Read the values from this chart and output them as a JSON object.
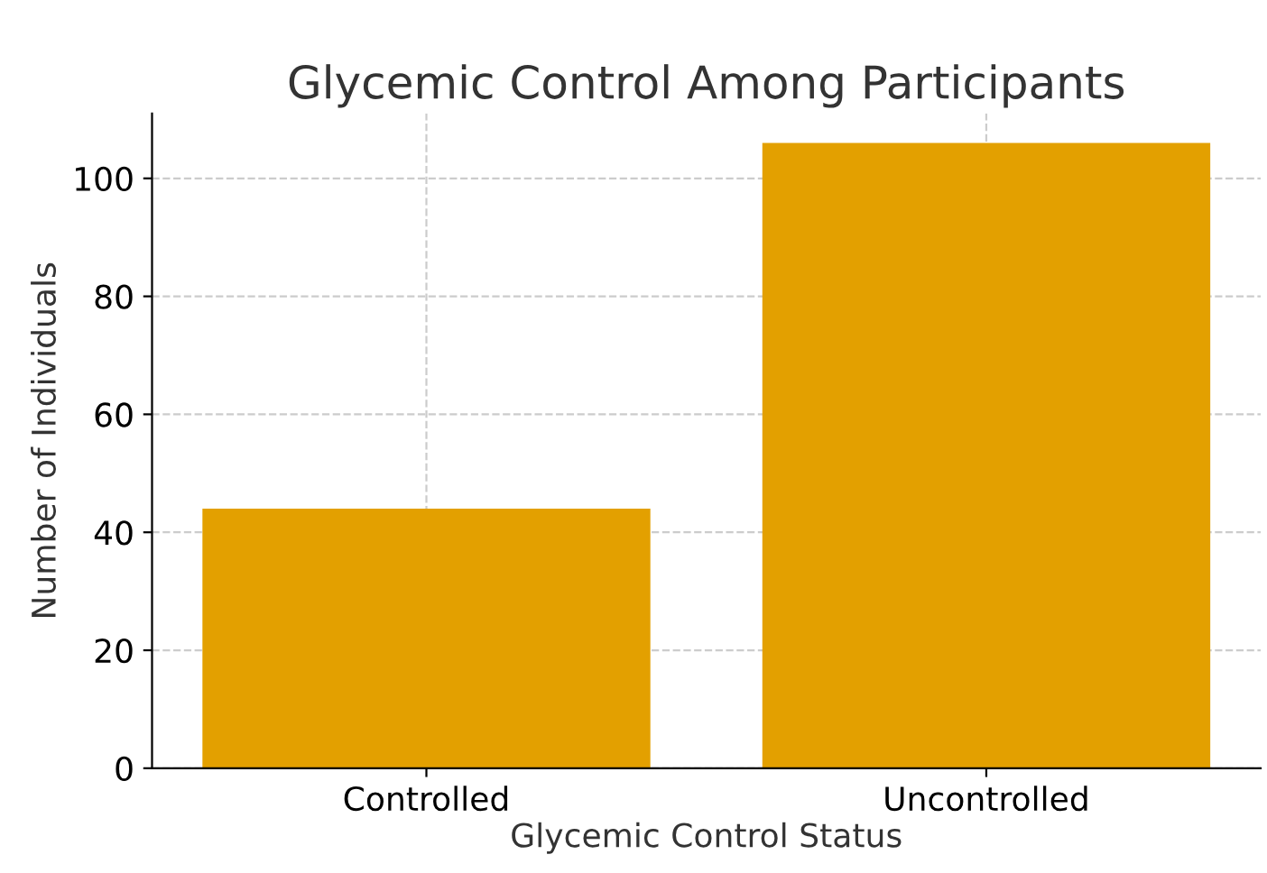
{
  "chart_data": {
    "type": "bar",
    "title": "Glycemic Control Among Participants",
    "xlabel": "Glycemic Control Status",
    "ylabel": "Number of Individuals",
    "categories": [
      "Controlled",
      "Uncontrolled"
    ],
    "values": [
      44,
      106
    ],
    "color": "#e3a000",
    "ylim": [
      0,
      111
    ],
    "yticks": [
      0,
      20,
      40,
      60,
      80,
      100
    ],
    "grid": true
  }
}
